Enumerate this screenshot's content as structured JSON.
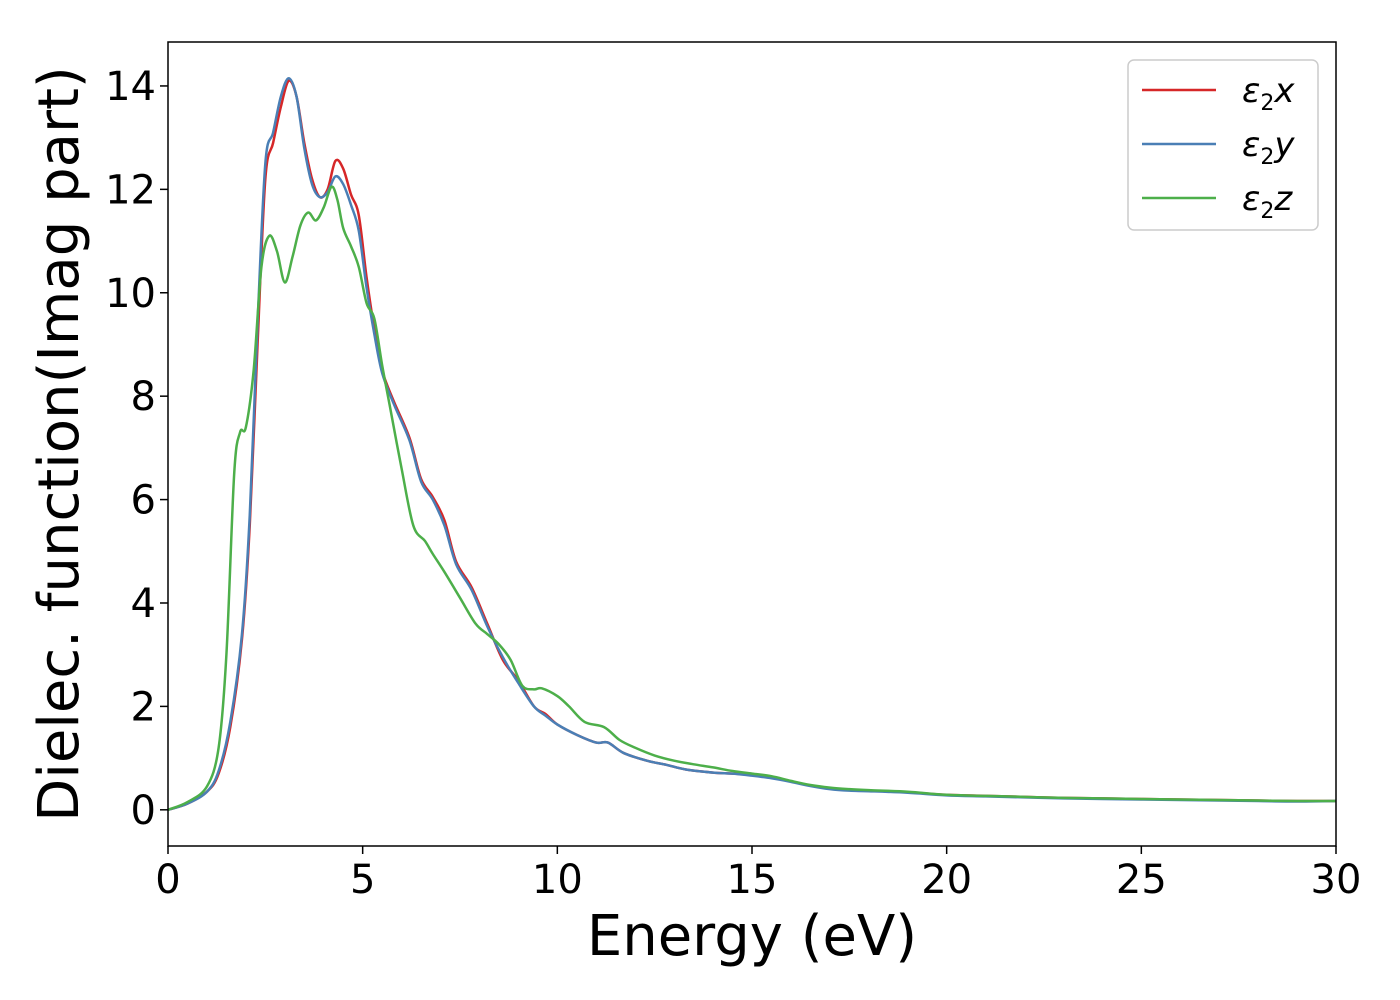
{
  "chart_data": {
    "type": "line",
    "title": "",
    "xlabel": "Energy (eV)",
    "ylabel": "Dielec. function(Imag part)",
    "xlim": [
      0,
      30
    ],
    "ylim": [
      -0.7,
      14.85
    ],
    "xticks": [
      0,
      5,
      10,
      15,
      20,
      25,
      30
    ],
    "yticks": [
      0,
      2,
      4,
      6,
      8,
      10,
      12,
      14
    ],
    "grid": false,
    "legend_position": "top-right",
    "series": [
      {
        "name": "ε₂x",
        "legend_base": "ε",
        "legend_sub": "2",
        "legend_tail": "x",
        "color": "#d62728",
        "points": [
          [
            0,
            0
          ],
          [
            0.5,
            0.12
          ],
          [
            1,
            0.35
          ],
          [
            1.3,
            0.7
          ],
          [
            1.6,
            1.6
          ],
          [
            1.9,
            3.3
          ],
          [
            2.1,
            5.5
          ],
          [
            2.3,
            9
          ],
          [
            2.5,
            12.2
          ],
          [
            2.7,
            12.9
          ],
          [
            2.9,
            13.6
          ],
          [
            3.1,
            14.1
          ],
          [
            3.3,
            13.8
          ],
          [
            3.5,
            12.9
          ],
          [
            3.7,
            12.2
          ],
          [
            3.9,
            11.85
          ],
          [
            4.1,
            12
          ],
          [
            4.3,
            12.55
          ],
          [
            4.5,
            12.4
          ],
          [
            4.7,
            11.9
          ],
          [
            4.9,
            11.5
          ],
          [
            5.1,
            10.3
          ],
          [
            5.3,
            9.3
          ],
          [
            5.5,
            8.5
          ],
          [
            5.8,
            7.9
          ],
          [
            6.2,
            7.2
          ],
          [
            6.5,
            6.4
          ],
          [
            6.8,
            6.05
          ],
          [
            7.1,
            5.6
          ],
          [
            7.4,
            4.8
          ],
          [
            7.8,
            4.3
          ],
          [
            8.2,
            3.6
          ],
          [
            8.6,
            2.9
          ],
          [
            9,
            2.5
          ],
          [
            9.4,
            2
          ],
          [
            9.7,
            1.85
          ],
          [
            10,
            1.65
          ],
          [
            10.5,
            1.45
          ],
          [
            11,
            1.3
          ],
          [
            11.3,
            1.3
          ],
          [
            11.7,
            1.1
          ],
          [
            12.3,
            0.95
          ],
          [
            12.8,
            0.87
          ],
          [
            13.3,
            0.78
          ],
          [
            14,
            0.72
          ],
          [
            14.5,
            0.7
          ],
          [
            15,
            0.67
          ],
          [
            15.5,
            0.62
          ],
          [
            16,
            0.55
          ],
          [
            16.5,
            0.47
          ],
          [
            17,
            0.41
          ],
          [
            17.5,
            0.38
          ],
          [
            18,
            0.37
          ],
          [
            19,
            0.34
          ],
          [
            20,
            0.29
          ],
          [
            21,
            0.27
          ],
          [
            22,
            0.25
          ],
          [
            23,
            0.23
          ],
          [
            24,
            0.22
          ],
          [
            25,
            0.21
          ],
          [
            26,
            0.2
          ],
          [
            27,
            0.19
          ],
          [
            28,
            0.18
          ],
          [
            29,
            0.17
          ],
          [
            30,
            0.17
          ]
        ]
      },
      {
        "name": "ε₂y",
        "legend_base": "ε",
        "legend_sub": "2",
        "legend_tail": "y",
        "color": "#4a7fb5",
        "points": [
          [
            0,
            0
          ],
          [
            0.5,
            0.12
          ],
          [
            1,
            0.35
          ],
          [
            1.3,
            0.75
          ],
          [
            1.6,
            1.7
          ],
          [
            1.9,
            3.4
          ],
          [
            2.1,
            5.7
          ],
          [
            2.3,
            9.4
          ],
          [
            2.5,
            12.5
          ],
          [
            2.7,
            13.1
          ],
          [
            2.9,
            13.8
          ],
          [
            3.1,
            14.15
          ],
          [
            3.3,
            13.8
          ],
          [
            3.5,
            12.8
          ],
          [
            3.7,
            12.1
          ],
          [
            3.9,
            11.85
          ],
          [
            4.1,
            11.95
          ],
          [
            4.3,
            12.25
          ],
          [
            4.5,
            12.1
          ],
          [
            4.7,
            11.7
          ],
          [
            4.9,
            11.2
          ],
          [
            5.1,
            10.1
          ],
          [
            5.3,
            9.2
          ],
          [
            5.5,
            8.45
          ],
          [
            5.8,
            7.85
          ],
          [
            6.2,
            7.15
          ],
          [
            6.5,
            6.35
          ],
          [
            6.8,
            6
          ],
          [
            7.1,
            5.5
          ],
          [
            7.4,
            4.75
          ],
          [
            7.8,
            4.25
          ],
          [
            8.2,
            3.55
          ],
          [
            8.6,
            2.95
          ],
          [
            9,
            2.45
          ],
          [
            9.4,
            2
          ],
          [
            9.7,
            1.82
          ],
          [
            10,
            1.65
          ],
          [
            10.5,
            1.45
          ],
          [
            11,
            1.3
          ],
          [
            11.3,
            1.3
          ],
          [
            11.7,
            1.1
          ],
          [
            12.3,
            0.95
          ],
          [
            12.8,
            0.87
          ],
          [
            13.3,
            0.78
          ],
          [
            14,
            0.72
          ],
          [
            14.5,
            0.7
          ],
          [
            15,
            0.66
          ],
          [
            15.5,
            0.61
          ],
          [
            16,
            0.54
          ],
          [
            16.5,
            0.46
          ],
          [
            17,
            0.4
          ],
          [
            17.5,
            0.37
          ],
          [
            18,
            0.36
          ],
          [
            19,
            0.33
          ],
          [
            20,
            0.28
          ],
          [
            21,
            0.26
          ],
          [
            22,
            0.24
          ],
          [
            23,
            0.22
          ],
          [
            24,
            0.21
          ],
          [
            25,
            0.2
          ],
          [
            26,
            0.19
          ],
          [
            27,
            0.18
          ],
          [
            28,
            0.17
          ],
          [
            29,
            0.16
          ],
          [
            30,
            0.17
          ]
        ]
      },
      {
        "name": "ε₂z",
        "legend_base": "ε",
        "legend_sub": "2",
        "legend_tail": "z",
        "color": "#4daf4a",
        "points": [
          [
            0,
            0
          ],
          [
            0.5,
            0.15
          ],
          [
            1,
            0.45
          ],
          [
            1.3,
            1.2
          ],
          [
            1.5,
            3
          ],
          [
            1.7,
            6.5
          ],
          [
            1.85,
            7.3
          ],
          [
            2,
            7.4
          ],
          [
            2.2,
            8.5
          ],
          [
            2.4,
            10.5
          ],
          [
            2.6,
            11.1
          ],
          [
            2.8,
            10.8
          ],
          [
            3,
            10.2
          ],
          [
            3.2,
            10.7
          ],
          [
            3.4,
            11.3
          ],
          [
            3.6,
            11.55
          ],
          [
            3.8,
            11.4
          ],
          [
            4,
            11.65
          ],
          [
            4.2,
            12.05
          ],
          [
            4.35,
            11.8
          ],
          [
            4.5,
            11.25
          ],
          [
            4.7,
            10.9
          ],
          [
            4.9,
            10.5
          ],
          [
            5.1,
            9.8
          ],
          [
            5.3,
            9.5
          ],
          [
            5.5,
            8.6
          ],
          [
            5.7,
            7.8
          ],
          [
            6,
            6.6
          ],
          [
            6.3,
            5.5
          ],
          [
            6.6,
            5.2
          ],
          [
            6.8,
            4.95
          ],
          [
            7.1,
            4.6
          ],
          [
            7.5,
            4.1
          ],
          [
            7.9,
            3.6
          ],
          [
            8.2,
            3.4
          ],
          [
            8.5,
            3.2
          ],
          [
            8.8,
            2.9
          ],
          [
            9.1,
            2.4
          ],
          [
            9.4,
            2.33
          ],
          [
            9.6,
            2.35
          ],
          [
            10,
            2.2
          ],
          [
            10.3,
            2
          ],
          [
            10.7,
            1.7
          ],
          [
            11.2,
            1.6
          ],
          [
            11.6,
            1.35
          ],
          [
            12,
            1.2
          ],
          [
            12.5,
            1.05
          ],
          [
            13,
            0.95
          ],
          [
            13.5,
            0.88
          ],
          [
            14,
            0.82
          ],
          [
            14.5,
            0.75
          ],
          [
            15,
            0.7
          ],
          [
            15.5,
            0.65
          ],
          [
            16,
            0.56
          ],
          [
            16.5,
            0.48
          ],
          [
            17,
            0.43
          ],
          [
            17.5,
            0.4
          ],
          [
            18,
            0.38
          ],
          [
            19,
            0.35
          ],
          [
            20,
            0.29
          ],
          [
            21,
            0.27
          ],
          [
            22,
            0.25
          ],
          [
            23,
            0.23
          ],
          [
            24,
            0.22
          ],
          [
            25,
            0.21
          ],
          [
            26,
            0.2
          ],
          [
            27,
            0.19
          ],
          [
            28,
            0.18
          ],
          [
            29,
            0.17
          ],
          [
            30,
            0.17
          ]
        ]
      }
    ]
  }
}
